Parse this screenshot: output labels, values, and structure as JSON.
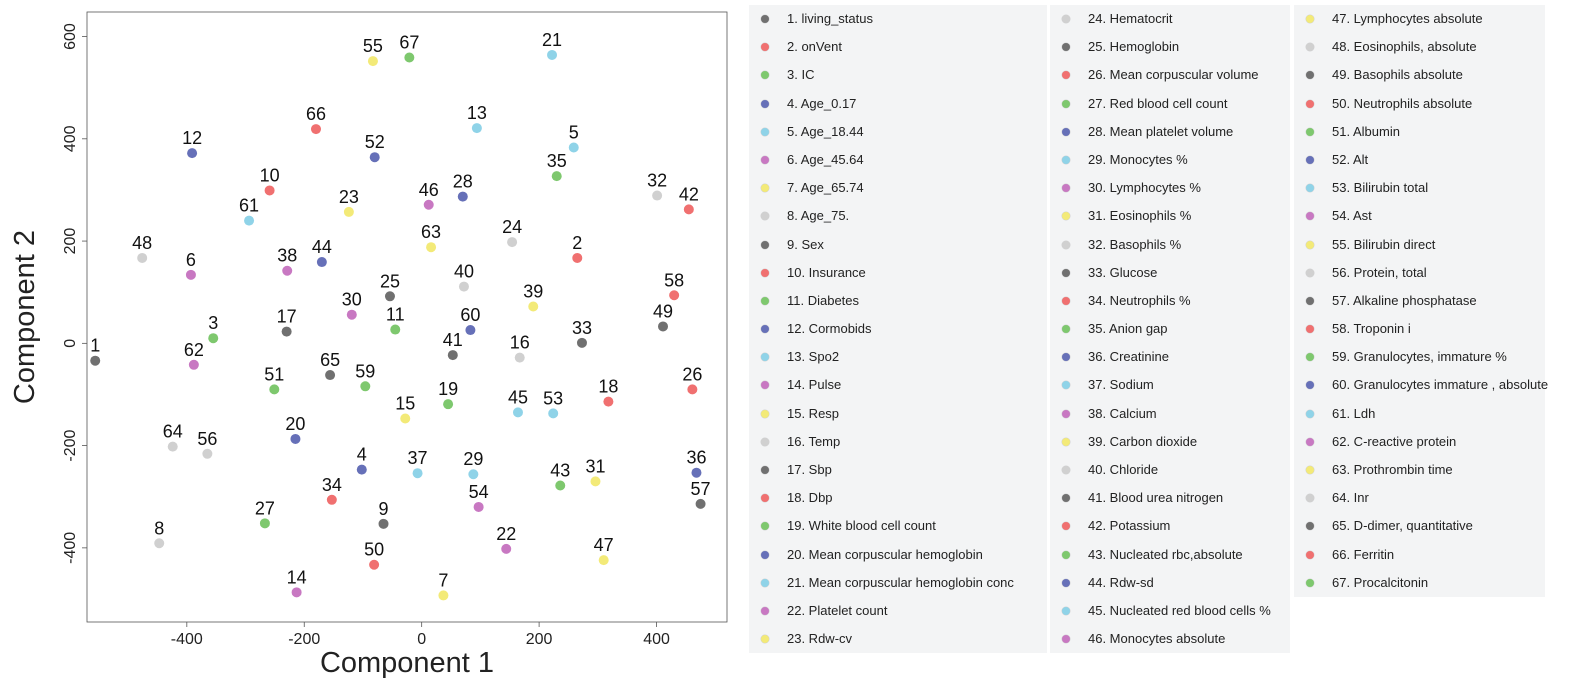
{
  "chart_data": {
    "type": "scatter",
    "xlabel": "Component 1",
    "ylabel": "Component 2",
    "xlim": [
      -570,
      520
    ],
    "ylim": [
      -545,
      648
    ],
    "xticks": [
      -400,
      -200,
      0,
      200,
      400
    ],
    "yticks": [
      -400,
      -200,
      0,
      200,
      400,
      600
    ],
    "grid": false,
    "legend_position": "right",
    "colors": {
      "dark": "#707070",
      "red": "#f07070",
      "green": "#7ec86e",
      "blue": "#6670b8",
      "cyan": "#8fd3e8",
      "pink": "#c878c2",
      "yellow": "#f3ea78",
      "gray": "#d0d0d0"
    },
    "points": [
      {
        "id": "1",
        "label": "living_status",
        "x": -556,
        "y": -34,
        "color": "dark"
      },
      {
        "id": "2",
        "label": "onVent",
        "x": 265,
        "y": 167,
        "color": "red"
      },
      {
        "id": "3",
        "label": "IC",
        "x": -355,
        "y": 10,
        "color": "green"
      },
      {
        "id": "4",
        "label": "Age_0.17",
        "x": -102,
        "y": -247,
        "color": "blue"
      },
      {
        "id": "5",
        "label": "Age_18.44",
        "x": 259,
        "y": 383,
        "color": "cyan"
      },
      {
        "id": "6",
        "label": "Age_45.64",
        "x": -393,
        "y": 134,
        "color": "pink"
      },
      {
        "id": "7",
        "label": "Age_65.74",
        "x": 37,
        "y": -493,
        "color": "yellow"
      },
      {
        "id": "8",
        "label": "Age_75.",
        "x": -447,
        "y": -391,
        "color": "gray"
      },
      {
        "id": "9",
        "label": "Sex",
        "x": -65,
        "y": -353,
        "color": "dark"
      },
      {
        "id": "10",
        "label": "Insurance",
        "x": -259,
        "y": 299,
        "color": "red"
      },
      {
        "id": "11",
        "label": "Diabetes",
        "x": -45,
        "y": 27,
        "color": "green"
      },
      {
        "id": "12",
        "label": "Cormobids",
        "x": -391,
        "y": 372,
        "color": "blue"
      },
      {
        "id": "13",
        "label": "Spo2",
        "x": 94,
        "y": 421,
        "color": "cyan"
      },
      {
        "id": "14",
        "label": "Pulse",
        "x": -213,
        "y": -487,
        "color": "pink"
      },
      {
        "id": "15",
        "label": "Resp",
        "x": -28,
        "y": -147,
        "color": "yellow"
      },
      {
        "id": "16",
        "label": "Temp",
        "x": 167,
        "y": -28,
        "color": "gray"
      },
      {
        "id": "17",
        "label": "Sbp",
        "x": -230,
        "y": 23,
        "color": "dark"
      },
      {
        "id": "18",
        "label": "Dbp",
        "x": 318,
        "y": -114,
        "color": "red"
      },
      {
        "id": "19",
        "label": "White blood cell count",
        "x": 45,
        "y": -119,
        "color": "green"
      },
      {
        "id": "20",
        "label": "Mean corpuscular hemoglobin",
        "x": -215,
        "y": -187,
        "color": "blue"
      },
      {
        "id": "21",
        "label": "Mean corpuscular hemoglobin conc",
        "x": 222,
        "y": 564,
        "color": "cyan"
      },
      {
        "id": "22",
        "label": "Platelet count",
        "x": 144,
        "y": -402,
        "color": "pink"
      },
      {
        "id": "23",
        "label": "Rdw-cv",
        "x": -124,
        "y": 257,
        "color": "yellow"
      },
      {
        "id": "24",
        "label": "Hematocrit",
        "x": 154,
        "y": 198,
        "color": "gray"
      },
      {
        "id": "25",
        "label": "Hemoglobin",
        "x": -54,
        "y": 92,
        "color": "dark"
      },
      {
        "id": "26",
        "label": "Mean corpuscular volume",
        "x": 461,
        "y": -90,
        "color": "red"
      },
      {
        "id": "27",
        "label": "Red blood cell count",
        "x": -267,
        "y": -352,
        "color": "green"
      },
      {
        "id": "28",
        "label": "Mean platelet volume",
        "x": 70,
        "y": 287,
        "color": "blue"
      },
      {
        "id": "29",
        "label": "Monocytes %",
        "x": 88,
        "y": -256,
        "color": "cyan"
      },
      {
        "id": "30",
        "label": "Lymphocytes %",
        "x": -119,
        "y": 56,
        "color": "pink"
      },
      {
        "id": "31",
        "label": "Eosinophils %",
        "x": 296,
        "y": -270,
        "color": "yellow"
      },
      {
        "id": "32",
        "label": "Basophils %",
        "x": 401,
        "y": 289,
        "color": "gray"
      },
      {
        "id": "33",
        "label": "Glucose",
        "x": 273,
        "y": 1,
        "color": "dark"
      },
      {
        "id": "34",
        "label": "Neutrophils %",
        "x": -153,
        "y": -306,
        "color": "red"
      },
      {
        "id": "35",
        "label": "Anion gap",
        "x": 230,
        "y": 327,
        "color": "green"
      },
      {
        "id": "36",
        "label": "Creatinine",
        "x": 468,
        "y": -253,
        "color": "blue"
      },
      {
        "id": "37",
        "label": "Sodium",
        "x": -7,
        "y": -254,
        "color": "cyan"
      },
      {
        "id": "38",
        "label": "Calcium",
        "x": -229,
        "y": 142,
        "color": "pink"
      },
      {
        "id": "39",
        "label": "Carbon dioxide",
        "x": 190,
        "y": 72,
        "color": "yellow"
      },
      {
        "id": "40",
        "label": "Chloride",
        "x": 72,
        "y": 111,
        "color": "gray"
      },
      {
        "id": "41",
        "label": "Blood urea nitrogen",
        "x": 53,
        "y": -23,
        "color": "dark"
      },
      {
        "id": "42",
        "label": "Potassium",
        "x": 455,
        "y": 262,
        "color": "red"
      },
      {
        "id": "43",
        "label": "Nucleated rbc,absolute",
        "x": 236,
        "y": -278,
        "color": "green"
      },
      {
        "id": "44",
        "label": "Rdw-sd",
        "x": -170,
        "y": 159,
        "color": "blue"
      },
      {
        "id": "45",
        "label": "Nucleated red blood cells %",
        "x": 164,
        "y": -135,
        "color": "cyan"
      },
      {
        "id": "46",
        "label": "Monocytes absolute",
        "x": 12,
        "y": 271,
        "color": "pink"
      },
      {
        "id": "47",
        "label": "Lymphocytes absolute",
        "x": 310,
        "y": -424,
        "color": "yellow"
      },
      {
        "id": "48",
        "label": "Eosinophils, absolute",
        "x": -476,
        "y": 167,
        "color": "gray"
      },
      {
        "id": "49",
        "label": "Basophils absolute",
        "x": 411,
        "y": 33,
        "color": "dark"
      },
      {
        "id": "50",
        "label": "Neutrophils  absolute",
        "x": -81,
        "y": -433,
        "color": "red"
      },
      {
        "id": "51",
        "label": "Albumin",
        "x": -251,
        "y": -90,
        "color": "green"
      },
      {
        "id": "52",
        "label": "Alt",
        "x": -80,
        "y": 364,
        "color": "blue"
      },
      {
        "id": "53",
        "label": "Bilirubin total",
        "x": 224,
        "y": -137,
        "color": "cyan"
      },
      {
        "id": "54",
        "label": "Ast",
        "x": 97,
        "y": -320,
        "color": "pink"
      },
      {
        "id": "55",
        "label": "Bilirubin direct",
        "x": -83,
        "y": 552,
        "color": "yellow"
      },
      {
        "id": "56",
        "label": "Protein, total",
        "x": -365,
        "y": -216,
        "color": "gray"
      },
      {
        "id": "57",
        "label": "Alkaline phosphatase",
        "x": 475,
        "y": -314,
        "color": "dark"
      },
      {
        "id": "58",
        "label": "Troponin i",
        "x": 430,
        "y": 94,
        "color": "red"
      },
      {
        "id": "59",
        "label": "Granulocytes, immature %",
        "x": -96,
        "y": -84,
        "color": "green"
      },
      {
        "id": "60",
        "label": "Granulocytes immature , absolute",
        "x": 83,
        "y": 26,
        "color": "blue"
      },
      {
        "id": "61",
        "label": "Ldh",
        "x": -294,
        "y": 240,
        "color": "cyan"
      },
      {
        "id": "62",
        "label": "C-reactive protein",
        "x": -388,
        "y": -42,
        "color": "pink"
      },
      {
        "id": "63",
        "label": "Prothrombin time",
        "x": 16,
        "y": 188,
        "color": "yellow"
      },
      {
        "id": "64",
        "label": "Inr",
        "x": -424,
        "y": -202,
        "color": "gray"
      },
      {
        "id": "65",
        "label": "D-dimer, quantitative",
        "x": -156,
        "y": -62,
        "color": "dark"
      },
      {
        "id": "66",
        "label": "Ferritin",
        "x": -180,
        "y": 419,
        "color": "red"
      },
      {
        "id": "67",
        "label": "Procalcitonin",
        "x": -21,
        "y": 559,
        "color": "green"
      }
    ]
  }
}
